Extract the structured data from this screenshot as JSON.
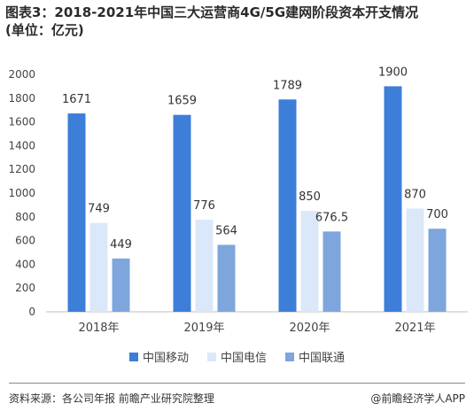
{
  "title_line1": "图表3：2018-2021年中国三大运营商4G/5G建网阶段资本开支情况",
  "title_line2": "(单位：亿元)",
  "source": "资料来源：各公司年报 前瞻产业研究院整理",
  "credit": "@前瞻经济学人APP",
  "colors": {
    "mobile": "#3d7ed8",
    "telecom": "#dbe8fa",
    "unicom": "#7ea6dd"
  },
  "chart_data": {
    "type": "bar",
    "categories": [
      "2018年",
      "2019年",
      "2020年",
      "2021年"
    ],
    "series": [
      {
        "name": "中国移动",
        "values": [
          1671,
          1659,
          1789,
          1900
        ],
        "labels": [
          "1671",
          "1659",
          "1789",
          "1900"
        ]
      },
      {
        "name": "中国电信",
        "values": [
          749,
          776,
          850,
          870
        ],
        "labels": [
          "749",
          "776",
          "850",
          "870"
        ]
      },
      {
        "name": "中国联通",
        "values": [
          449,
          564,
          676.5,
          700
        ],
        "labels": [
          "449",
          "564",
          "676.5",
          "700"
        ]
      }
    ],
    "ylim": [
      0,
      2000
    ],
    "yticks": [
      0,
      200,
      400,
      600,
      800,
      1000,
      1200,
      1400,
      1600,
      1800,
      2000
    ],
    "legend_position": "bottom",
    "grid": false
  }
}
